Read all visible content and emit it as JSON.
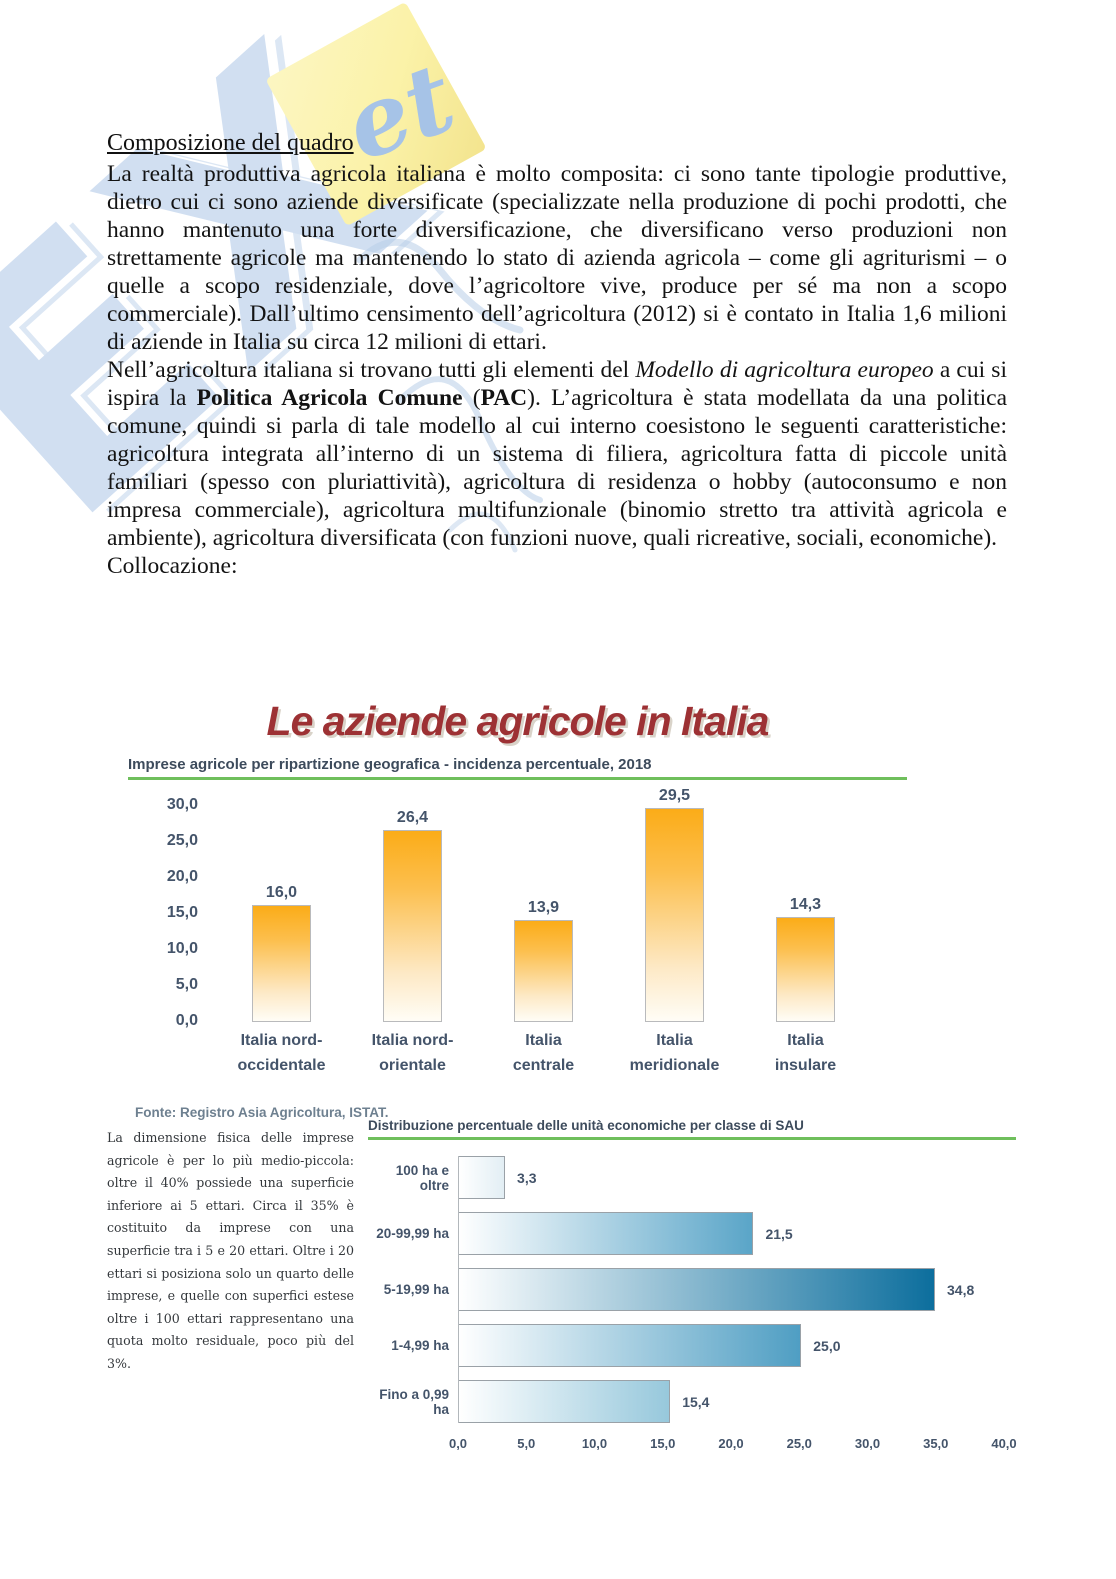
{
  "document": {
    "heading": "Composizione del quadro",
    "para1": "La realtà produttiva agricola italiana è molto composita: ci sono tante tipologie produttive, dietro cui ci sono aziende diversificate (specializzate nella produzione di pochi prodotti, che hanno mantenuto una forte diversificazione, che diversificano verso produzioni non strettamente agricole ma mantenendo lo stato di azienda agricola – come gli agriturismi – o quelle a scopo residenziale, dove l’agricoltore vive, produce per sé ma non a scopo commerciale). Dall’ultimo censimento dell’agricoltura (2012) si è contato in Italia 1,6 milioni di aziende in Italia su circa 12 milioni di ettari.",
    "para2_segments": [
      {
        "text": "Nell’agricoltura italiana si trovano tutti gli elementi del ",
        "style": ""
      },
      {
        "text": "Modello di agricoltura europeo",
        "style": "italic"
      },
      {
        "text": " a cui si ispira la ",
        "style": ""
      },
      {
        "text": "Politica Agricola Comune",
        "style": "bold"
      },
      {
        "text": " (",
        "style": ""
      },
      {
        "text": "PAC",
        "style": "bold"
      },
      {
        "text": "). L’agricoltura è stata modellata da una politica comune, quindi si parla di tale modello al cui interno coesistono le seguenti caratteristiche: agricoltura integrata all’interno di un sistema di filiera, agricoltura fatta di piccole unità familiari (spesso con pluriattività), agricoltura di residenza o hobby (autoconsumo e non impresa commerciale), agricoltura multifunzionale (binomio stretto tra attività agricola e ambiente), agricoltura diversificata (con funzioni nuove, quali ricreative, sociali, economiche).",
        "style": ""
      }
    ],
    "collocazione": "Collocazione:",
    "sidenote": "La dimensione fisica delle imprese agricole è per lo più medio-piccola: oltre il 40% possiede una superficie inferiore ai 5 ettari. Circa il 35% è costituito da imprese con una superficie tra i 5 e 20 ettari. Oltre i 20 ettari si posiziona solo un quarto delle imprese, e quelle con superfici estese oltre i 100 ettari rappresentano una quota molto residuale, poco più del 3%."
  },
  "watermark": {
    "big_letters": "EX",
    "note_text": "et"
  },
  "colors": {
    "title_red": "#9d3134",
    "green_rule": "#6fbf5c",
    "label_slate": "#44546a",
    "orange_bar_top": "#fbac18",
    "blue_bar_dark": "#0c6e9d"
  },
  "chart_data": [
    {
      "type": "bar",
      "title": "Le aziende agricole in Italia",
      "subtitle": "Imprese agricole per ripartizione geografica - incidenza percentuale, 2018",
      "source": "Fonte: Registro Asia Agricoltura, ISTAT.",
      "categories": [
        "Italia nord-\noccidentale",
        "Italia nord-\norientale",
        "Italia\ncentrale",
        "Italia\nmeridionale",
        "Italia\ninsulare"
      ],
      "values": [
        16.0,
        26.4,
        13.9,
        29.5,
        14.3
      ],
      "value_labels": [
        "16,0",
        "26,4",
        "13,9",
        "29,5",
        "14,3"
      ],
      "xlabel": "",
      "ylabel": "",
      "ylim": [
        0,
        30
      ],
      "ytick_values": [
        30,
        25,
        20,
        15,
        10,
        5,
        0
      ],
      "ytick_labels": [
        "30,0",
        "25,0",
        "20,0",
        "15,0",
        "10,0",
        "5,0",
        "0,0"
      ],
      "grid": false,
      "legend": "none"
    },
    {
      "type": "bar",
      "orientation": "horizontal",
      "title": "Distribuzione percentuale delle unità economiche per classe di SAU",
      "categories": [
        "100 ha e oltre",
        "20-99,99 ha",
        "5-19,99 ha",
        "1-4,99 ha",
        "Fino a 0,99 ha"
      ],
      "values": [
        3.3,
        21.5,
        34.8,
        25.0,
        15.4
      ],
      "value_labels": [
        "3,3",
        "21,5",
        "34,8",
        "25,0",
        "15,4"
      ],
      "xlabel": "",
      "ylabel": "",
      "xlim": [
        0,
        40
      ],
      "xtick_values": [
        0,
        5,
        10,
        15,
        20,
        25,
        30,
        35,
        40
      ],
      "xtick_labels": [
        "0,0",
        "5,0",
        "10,0",
        "15,0",
        "20,0",
        "25,0",
        "30,0",
        "35,0",
        "40,0"
      ],
      "bar_end_colors": [
        "#e2eef4",
        "#5aa5c8",
        "#0c6e9d",
        "#4f9ec3",
        "#97c8dc"
      ],
      "grid": false,
      "legend": "none"
    }
  ]
}
